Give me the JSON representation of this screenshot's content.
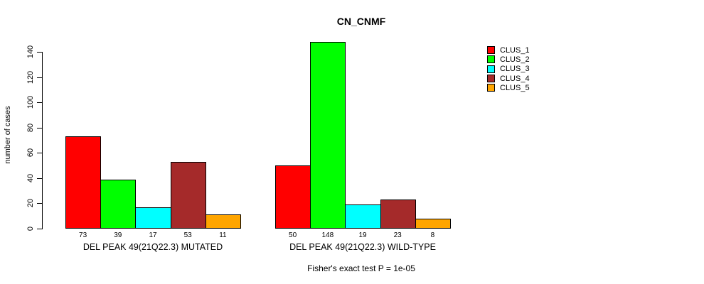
{
  "chart_data": {
    "type": "bar",
    "title": "CN_CNMF",
    "ylabel": "number of cases",
    "ylim": [
      0,
      140
    ],
    "yticks": [
      0,
      20,
      40,
      60,
      80,
      100,
      120,
      140
    ],
    "grid": false,
    "legend_position": "right",
    "series": [
      {
        "name": "CLUS_1",
        "color": "#FF0000"
      },
      {
        "name": "CLUS_2",
        "color": "#00FF00"
      },
      {
        "name": "CLUS_3",
        "color": "#00FFFF"
      },
      {
        "name": "CLUS_4",
        "color": "#A52A2A"
      },
      {
        "name": "CLUS_5",
        "color": "#FFA500"
      }
    ],
    "groups": [
      {
        "label": "DEL PEAK 49(21Q22.3) MUTATED",
        "values": [
          73,
          39,
          17,
          53,
          11
        ]
      },
      {
        "label": "DEL PEAK 49(21Q22.3) WILD-TYPE",
        "values": [
          50,
          148,
          19,
          23,
          8
        ]
      }
    ],
    "annotation": "Fisher's exact test P = 1e-05"
  }
}
